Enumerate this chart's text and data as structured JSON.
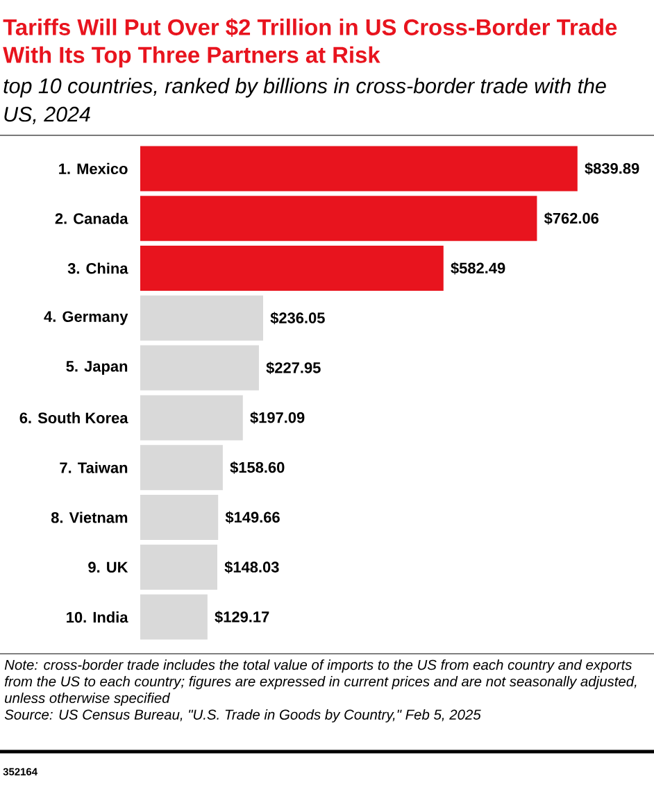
{
  "chart_data": {
    "type": "bar",
    "orientation": "horizontal",
    "title": "Tariffs Will Put Over $2 Trillion in US Cross-Border Trade With Its Top Three Partners at Risk",
    "subtitle": "top 10 countries, ranked by billions in cross-border trade with the US, 2024",
    "categories": [
      "1. Mexico",
      "2. Canada",
      "3. China",
      "4. Germany",
      "5. Japan",
      "6. South Korea",
      "7. Taiwan",
      "8. Vietnam",
      "9. UK",
      "10. India"
    ],
    "values": [
      839.89,
      762.06,
      582.49,
      236.05,
      227.95,
      197.09,
      158.6,
      149.66,
      148.03,
      129.17
    ],
    "value_labels": [
      "$839.89",
      "$762.06",
      "$582.49",
      "$236.05",
      "$227.95",
      "$197.09",
      "$158.60",
      "$149.66",
      "$148.03",
      "$129.17"
    ],
    "colors": [
      "#e8141e",
      "#e8141e",
      "#e8141e",
      "#d9d9d9",
      "#d9d9d9",
      "#d9d9d9",
      "#d9d9d9",
      "#d9d9d9",
      "#d9d9d9",
      "#d9d9d9"
    ],
    "annotations": [
      "Note: cross-border trade includes the total value of imports to the US from each country and exports from the US to each country; figures are expressed in current prices and are not seasonally adjusted, unless otherwise specified",
      "Source: US Census Bureau, \"U.S. Trade in Goods by Country,\" Feb 5, 2025",
      "352164"
    ]
  }
}
